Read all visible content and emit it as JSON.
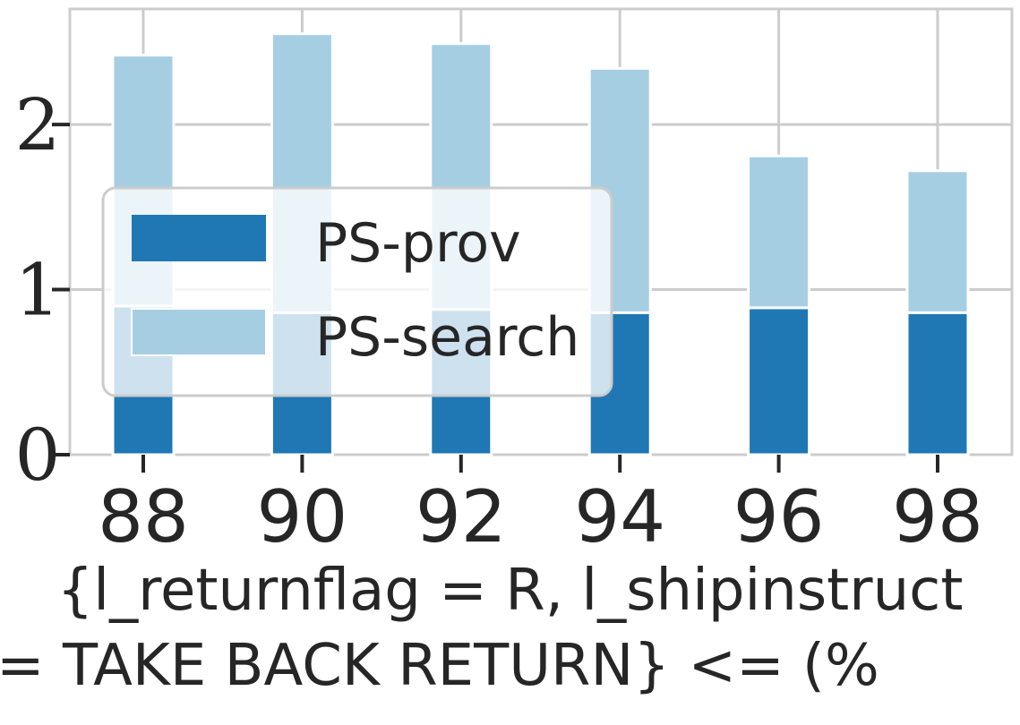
{
  "chart_data": {
    "type": "bar",
    "stacked": true,
    "categories": [
      "88",
      "90",
      "92",
      "94",
      "96",
      "98"
    ],
    "series": [
      {
        "name": "PS-prov",
        "values": [
          0.9,
          0.86,
          0.88,
          0.86,
          0.89,
          0.86
        ],
        "color": "#1f78b4"
      },
      {
        "name": "PS-search",
        "values": [
          1.52,
          1.69,
          1.61,
          1.48,
          0.92,
          0.86
        ],
        "color": "#a6cee3"
      }
    ],
    "ylim": [
      0,
      2.7
    ],
    "yticks": [
      "0",
      "1",
      "2"
    ],
    "xlabel_line1": "{l_returnflag = R, l_shipinstruct",
    "xlabel_line2": "= TAKE BACK RETURN} <= (%",
    "grid": true,
    "legend_position": "center-left"
  }
}
